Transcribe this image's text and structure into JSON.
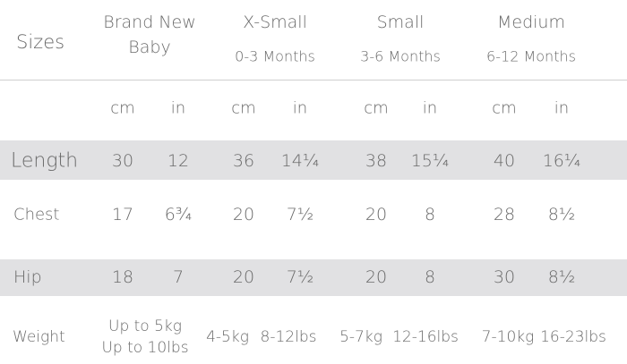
{
  "header": {
    "label": "Sizes",
    "columns": [
      {
        "name": "Brand New Baby"
      },
      {
        "name": "X-Small",
        "range": "0-3 Months"
      },
      {
        "name": "Small",
        "range": "3-6 Months"
      },
      {
        "name": "Medium",
        "range": "6-12 Months"
      }
    ]
  },
  "units": [
    "cm",
    "in",
    "cm",
    "in",
    "cm",
    "in",
    "cm",
    "in"
  ],
  "rows": [
    {
      "label": "Length",
      "cells": [
        "30",
        "12",
        "36",
        "14¼",
        "38",
        "15¼",
        "40",
        "16¼"
      ]
    },
    {
      "label": "Chest",
      "cells": [
        "17",
        "6¾",
        "20",
        "7½",
        "20",
        "8",
        "28",
        "8½"
      ]
    },
    {
      "label": "Hip",
      "cells": [
        "18",
        "7",
        "20",
        "7½",
        "20",
        "8",
        "30",
        "8½"
      ]
    }
  ],
  "weight": {
    "label": "Weight",
    "brand_new_baby": [
      "Up to 5kg",
      "Up to 10lbs"
    ],
    "cells": [
      "4-5kg",
      "8-12lbs",
      "5-7kg",
      "12-16lbs",
      "7-10kg",
      "16-23lbs"
    ]
  }
}
